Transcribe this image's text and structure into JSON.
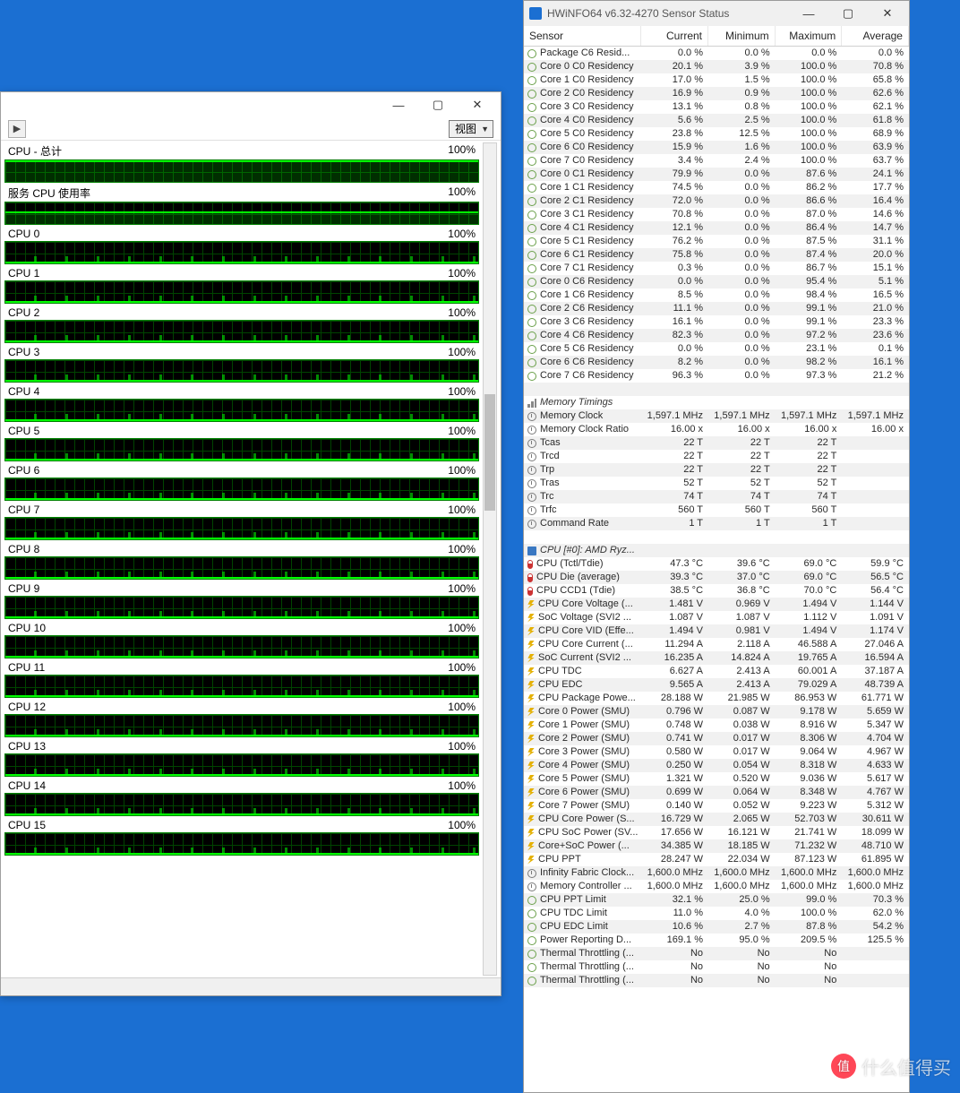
{
  "desktop": {
    "background_color": "#1b6fd2"
  },
  "perf": {
    "window_controls": {
      "minimize": "—",
      "maximize": "▢",
      "close": "✕"
    },
    "toolbar": {
      "view_label": "视图"
    },
    "percent100": "100%",
    "rows": [
      {
        "label": "CPU - 总计",
        "style": "full"
      },
      {
        "label": "服务 CPU 使用率",
        "style": "high"
      },
      {
        "label": "CPU 0",
        "style": "cpu"
      },
      {
        "label": "CPU 1",
        "style": "cpu"
      },
      {
        "label": "CPU 2",
        "style": "cpu"
      },
      {
        "label": "CPU 3",
        "style": "cpu"
      },
      {
        "label": "CPU 4",
        "style": "cpu"
      },
      {
        "label": "CPU 5",
        "style": "cpu"
      },
      {
        "label": "CPU 6",
        "style": "cpu"
      },
      {
        "label": "CPU 7",
        "style": "cpu"
      },
      {
        "label": "CPU 8",
        "style": "cpu"
      },
      {
        "label": "CPU 9",
        "style": "cpu"
      },
      {
        "label": "CPU 10",
        "style": "cpu"
      },
      {
        "label": "CPU 11",
        "style": "cpu"
      },
      {
        "label": "CPU 12",
        "style": "cpu"
      },
      {
        "label": "CPU 13",
        "style": "cpu"
      },
      {
        "label": "CPU 14",
        "style": "cpu"
      },
      {
        "label": "CPU 15",
        "style": "cpu"
      }
    ],
    "graph_colors": {
      "bg": "#000000",
      "grid": "#004400",
      "trace": "#00ff00"
    }
  },
  "hw": {
    "title": "HWiNFO64 v6.32-4270 Sensor Status",
    "window_controls": {
      "minimize": "—",
      "maximize": "▢",
      "close": "✕"
    },
    "columns": [
      "Sensor",
      "Current",
      "Minimum",
      "Maximum",
      "Average"
    ],
    "groups": [
      {
        "rows": [
          {
            "icon": "ring",
            "n": "Package C6 Resid...",
            "c": "0.0 %",
            "mn": "0.0 %",
            "mx": "0.0 %",
            "av": "0.0 %"
          },
          {
            "icon": "ring",
            "n": "Core 0 C0 Residency",
            "c": "20.1 %",
            "mn": "3.9 %",
            "mx": "100.0 %",
            "av": "70.8 %"
          },
          {
            "icon": "ring",
            "n": "Core 1 C0 Residency",
            "c": "17.0 %",
            "mn": "1.5 %",
            "mx": "100.0 %",
            "av": "65.8 %"
          },
          {
            "icon": "ring",
            "n": "Core 2 C0 Residency",
            "c": "16.9 %",
            "mn": "0.9 %",
            "mx": "100.0 %",
            "av": "62.6 %"
          },
          {
            "icon": "ring",
            "n": "Core 3 C0 Residency",
            "c": "13.1 %",
            "mn": "0.8 %",
            "mx": "100.0 %",
            "av": "62.1 %"
          },
          {
            "icon": "ring",
            "n": "Core 4 C0 Residency",
            "c": "5.6 %",
            "mn": "2.5 %",
            "mx": "100.0 %",
            "av": "61.8 %"
          },
          {
            "icon": "ring",
            "n": "Core 5 C0 Residency",
            "c": "23.8 %",
            "mn": "12.5 %",
            "mx": "100.0 %",
            "av": "68.9 %"
          },
          {
            "icon": "ring",
            "n": "Core 6 C0 Residency",
            "c": "15.9 %",
            "mn": "1.6 %",
            "mx": "100.0 %",
            "av": "63.9 %"
          },
          {
            "icon": "ring",
            "n": "Core 7 C0 Residency",
            "c": "3.4 %",
            "mn": "2.4 %",
            "mx": "100.0 %",
            "av": "63.7 %"
          },
          {
            "icon": "ring",
            "n": "Core 0 C1 Residency",
            "c": "79.9 %",
            "mn": "0.0 %",
            "mx": "87.6 %",
            "av": "24.1 %"
          },
          {
            "icon": "ring",
            "n": "Core 1 C1 Residency",
            "c": "74.5 %",
            "mn": "0.0 %",
            "mx": "86.2 %",
            "av": "17.7 %"
          },
          {
            "icon": "ring",
            "n": "Core 2 C1 Residency",
            "c": "72.0 %",
            "mn": "0.0 %",
            "mx": "86.6 %",
            "av": "16.4 %"
          },
          {
            "icon": "ring",
            "n": "Core 3 C1 Residency",
            "c": "70.8 %",
            "mn": "0.0 %",
            "mx": "87.0 %",
            "av": "14.6 %"
          },
          {
            "icon": "ring",
            "n": "Core 4 C1 Residency",
            "c": "12.1 %",
            "mn": "0.0 %",
            "mx": "86.4 %",
            "av": "14.7 %"
          },
          {
            "icon": "ring",
            "n": "Core 5 C1 Residency",
            "c": "76.2 %",
            "mn": "0.0 %",
            "mx": "87.5 %",
            "av": "31.1 %"
          },
          {
            "icon": "ring",
            "n": "Core 6 C1 Residency",
            "c": "75.8 %",
            "mn": "0.0 %",
            "mx": "87.4 %",
            "av": "20.0 %"
          },
          {
            "icon": "ring",
            "n": "Core 7 C1 Residency",
            "c": "0.3 %",
            "mn": "0.0 %",
            "mx": "86.7 %",
            "av": "15.1 %"
          },
          {
            "icon": "ring",
            "n": "Core 0 C6 Residency",
            "c": "0.0 %",
            "mn": "0.0 %",
            "mx": "95.4 %",
            "av": "5.1 %"
          },
          {
            "icon": "ring",
            "n": "Core 1 C6 Residency",
            "c": "8.5 %",
            "mn": "0.0 %",
            "mx": "98.4 %",
            "av": "16.5 %"
          },
          {
            "icon": "ring",
            "n": "Core 2 C6 Residency",
            "c": "11.1 %",
            "mn": "0.0 %",
            "mx": "99.1 %",
            "av": "21.0 %"
          },
          {
            "icon": "ring",
            "n": "Core 3 C6 Residency",
            "c": "16.1 %",
            "mn": "0.0 %",
            "mx": "99.1 %",
            "av": "23.3 %"
          },
          {
            "icon": "ring",
            "n": "Core 4 C6 Residency",
            "c": "82.3 %",
            "mn": "0.0 %",
            "mx": "97.2 %",
            "av": "23.6 %"
          },
          {
            "icon": "ring",
            "n": "Core 5 C6 Residency",
            "c": "0.0 %",
            "mn": "0.0 %",
            "mx": "23.1 %",
            "av": "0.1 %"
          },
          {
            "icon": "ring",
            "n": "Core 6 C6 Residency",
            "c": "8.2 %",
            "mn": "0.0 %",
            "mx": "98.2 %",
            "av": "16.1 %"
          },
          {
            "icon": "ring",
            "n": "Core 7 C6 Residency",
            "c": "96.3 %",
            "mn": "0.0 %",
            "mx": "97.3 %",
            "av": "21.2 %"
          }
        ]
      },
      {
        "title": "Memory Timings",
        "title_icon": "bars",
        "rows": [
          {
            "icon": "clock",
            "n": "Memory Clock",
            "c": "1,597.1 MHz",
            "mn": "1,597.1 MHz",
            "mx": "1,597.1 MHz",
            "av": "1,597.1 MHz"
          },
          {
            "icon": "clock",
            "n": "Memory Clock Ratio",
            "c": "16.00 x",
            "mn": "16.00 x",
            "mx": "16.00 x",
            "av": "16.00 x"
          },
          {
            "icon": "clock",
            "n": "Tcas",
            "c": "22 T",
            "mn": "22 T",
            "mx": "22 T",
            "av": ""
          },
          {
            "icon": "clock",
            "n": "Trcd",
            "c": "22 T",
            "mn": "22 T",
            "mx": "22 T",
            "av": ""
          },
          {
            "icon": "clock",
            "n": "Trp",
            "c": "22 T",
            "mn": "22 T",
            "mx": "22 T",
            "av": ""
          },
          {
            "icon": "clock",
            "n": "Tras",
            "c": "52 T",
            "mn": "52 T",
            "mx": "52 T",
            "av": ""
          },
          {
            "icon": "clock",
            "n": "Trc",
            "c": "74 T",
            "mn": "74 T",
            "mx": "74 T",
            "av": ""
          },
          {
            "icon": "clock",
            "n": "Trfc",
            "c": "560 T",
            "mn": "560 T",
            "mx": "560 T",
            "av": ""
          },
          {
            "icon": "clock",
            "n": "Command Rate",
            "c": "1 T",
            "mn": "1 T",
            "mx": "1 T",
            "av": ""
          }
        ]
      },
      {
        "title": "CPU [#0]: AMD Ryz...",
        "title_icon": "chip",
        "rows": [
          {
            "icon": "temp",
            "n": "CPU (Tctl/Tdie)",
            "c": "47.3 °C",
            "mn": "39.6 °C",
            "mx": "69.0 °C",
            "av": "59.9 °C"
          },
          {
            "icon": "temp",
            "n": "CPU Die (average)",
            "c": "39.3 °C",
            "mn": "37.0 °C",
            "mx": "69.0 °C",
            "av": "56.5 °C"
          },
          {
            "icon": "temp",
            "n": "CPU CCD1 (Tdie)",
            "c": "38.5 °C",
            "mn": "36.8 °C",
            "mx": "70.0 °C",
            "av": "56.4 °C"
          },
          {
            "icon": "bolt",
            "n": "CPU Core Voltage (...",
            "c": "1.481 V",
            "mn": "0.969 V",
            "mx": "1.494 V",
            "av": "1.144 V"
          },
          {
            "icon": "bolt",
            "n": "SoC Voltage (SVI2 ...",
            "c": "1.087 V",
            "mn": "1.087 V",
            "mx": "1.112 V",
            "av": "1.091 V"
          },
          {
            "icon": "bolt",
            "n": "CPU Core VID (Effe...",
            "c": "1.494 V",
            "mn": "0.981 V",
            "mx": "1.494 V",
            "av": "1.174 V"
          },
          {
            "icon": "bolt",
            "n": "CPU Core Current (...",
            "c": "11.294 A",
            "mn": "2.118 A",
            "mx": "46.588 A",
            "av": "27.046 A"
          },
          {
            "icon": "bolt",
            "n": "SoC Current (SVI2 ...",
            "c": "16.235 A",
            "mn": "14.824 A",
            "mx": "19.765 A",
            "av": "16.594 A"
          },
          {
            "icon": "bolt",
            "n": "CPU TDC",
            "c": "6.627 A",
            "mn": "2.413 A",
            "mx": "60.001 A",
            "av": "37.187 A"
          },
          {
            "icon": "bolt",
            "n": "CPU EDC",
            "c": "9.565 A",
            "mn": "2.413 A",
            "mx": "79.029 A",
            "av": "48.739 A"
          },
          {
            "icon": "bolt",
            "n": "CPU Package Powe...",
            "c": "28.188 W",
            "mn": "21.985 W",
            "mx": "86.953 W",
            "av": "61.771 W"
          },
          {
            "icon": "bolt",
            "n": "Core 0 Power (SMU)",
            "c": "0.796 W",
            "mn": "0.087 W",
            "mx": "9.178 W",
            "av": "5.659 W"
          },
          {
            "icon": "bolt",
            "n": "Core 1 Power (SMU)",
            "c": "0.748 W",
            "mn": "0.038 W",
            "mx": "8.916 W",
            "av": "5.347 W"
          },
          {
            "icon": "bolt",
            "n": "Core 2 Power (SMU)",
            "c": "0.741 W",
            "mn": "0.017 W",
            "mx": "8.306 W",
            "av": "4.704 W"
          },
          {
            "icon": "bolt",
            "n": "Core 3 Power (SMU)",
            "c": "0.580 W",
            "mn": "0.017 W",
            "mx": "9.064 W",
            "av": "4.967 W"
          },
          {
            "icon": "bolt",
            "n": "Core 4 Power (SMU)",
            "c": "0.250 W",
            "mn": "0.054 W",
            "mx": "8.318 W",
            "av": "4.633 W"
          },
          {
            "icon": "bolt",
            "n": "Core 5 Power (SMU)",
            "c": "1.321 W",
            "mn": "0.520 W",
            "mx": "9.036 W",
            "av": "5.617 W"
          },
          {
            "icon": "bolt",
            "n": "Core 6 Power (SMU)",
            "c": "0.699 W",
            "mn": "0.064 W",
            "mx": "8.348 W",
            "av": "4.767 W"
          },
          {
            "icon": "bolt",
            "n": "Core 7 Power (SMU)",
            "c": "0.140 W",
            "mn": "0.052 W",
            "mx": "9.223 W",
            "av": "5.312 W"
          },
          {
            "icon": "bolt",
            "n": "CPU Core Power (S...",
            "c": "16.729 W",
            "mn": "2.065 W",
            "mx": "52.703 W",
            "av": "30.611 W"
          },
          {
            "icon": "bolt",
            "n": "CPU SoC Power (SV...",
            "c": "17.656 W",
            "mn": "16.121 W",
            "mx": "21.741 W",
            "av": "18.099 W"
          },
          {
            "icon": "bolt",
            "n": "Core+SoC Power (...",
            "c": "34.385 W",
            "mn": "18.185 W",
            "mx": "71.232 W",
            "av": "48.710 W"
          },
          {
            "icon": "bolt",
            "n": "CPU PPT",
            "c": "28.247 W",
            "mn": "22.034 W",
            "mx": "87.123 W",
            "av": "61.895 W"
          },
          {
            "icon": "clock",
            "n": "Infinity Fabric Clock...",
            "c": "1,600.0 MHz",
            "mn": "1,600.0 MHz",
            "mx": "1,600.0 MHz",
            "av": "1,600.0 MHz"
          },
          {
            "icon": "clock",
            "n": "Memory Controller ...",
            "c": "1,600.0 MHz",
            "mn": "1,600.0 MHz",
            "mx": "1,600.0 MHz",
            "av": "1,600.0 MHz"
          },
          {
            "icon": "ring",
            "n": "CPU PPT Limit",
            "c": "32.1 %",
            "mn": "25.0 %",
            "mx": "99.0 %",
            "av": "70.3 %"
          },
          {
            "icon": "ring",
            "n": "CPU TDC Limit",
            "c": "11.0 %",
            "mn": "4.0 %",
            "mx": "100.0 %",
            "av": "62.0 %"
          },
          {
            "icon": "ring",
            "n": "CPU EDC Limit",
            "c": "10.6 %",
            "mn": "2.7 %",
            "mx": "87.8 %",
            "av": "54.2 %"
          },
          {
            "icon": "ring",
            "n": "Power Reporting D...",
            "c": "169.1 %",
            "mn": "95.0 %",
            "mx": "209.5 %",
            "av": "125.5 %"
          },
          {
            "icon": "ring",
            "n": "Thermal Throttling (...",
            "c": "No",
            "mn": "No",
            "mx": "No",
            "av": ""
          },
          {
            "icon": "ring",
            "n": "Thermal Throttling (...",
            "c": "No",
            "mn": "No",
            "mx": "No",
            "av": ""
          },
          {
            "icon": "ring",
            "n": "Thermal Throttling (...",
            "c": "No",
            "mn": "No",
            "mx": "No",
            "av": ""
          }
        ]
      }
    ]
  },
  "watermark": {
    "text": "什么值得买",
    "dot": "值"
  }
}
